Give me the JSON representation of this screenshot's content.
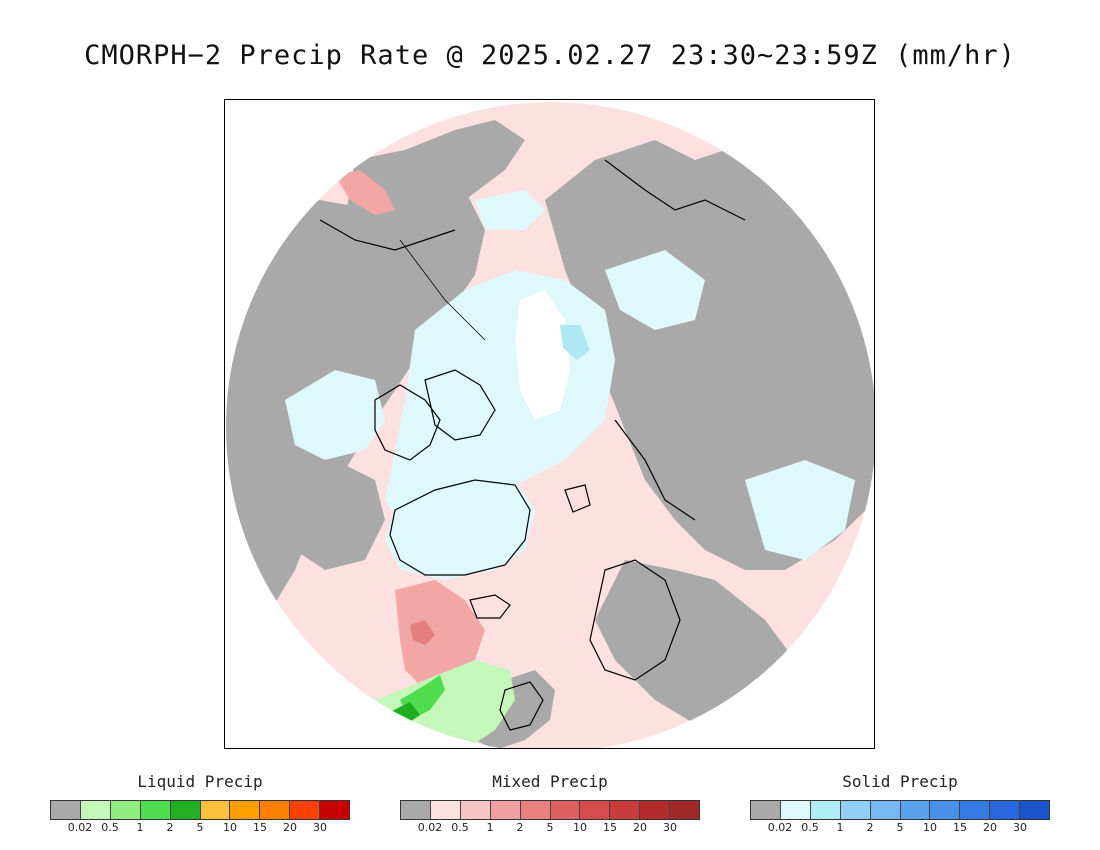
{
  "title": "CMORPH−2 Precip Rate @ 2025.02.27 23:30~23:59Z (mm/hr)",
  "map": {
    "projection": "north polar stereographic",
    "colors": {
      "no_precip": "#a9a9a9",
      "mixed_light": "#fde0e0",
      "mixed_mid": "#f2a6a6",
      "mixed_strong": "#e57f7f",
      "solid_light": "#dff8fb",
      "solid_white": "#ffffff",
      "solid_cyan": "#aee8f2",
      "liquid_light": "#c4f7b9",
      "liquid_mid": "#4fdc4f",
      "liquid_strong": "#1fae1f",
      "coast": "#000000"
    }
  },
  "legends": [
    {
      "id": "liquid",
      "title": "Liquid Precip",
      "colors": [
        "#a9a9a9",
        "#c4f7b9",
        "#90ee80",
        "#4fdc4f",
        "#22b022",
        "#ffc040",
        "#ffa000",
        "#ff8000",
        "#ff4000",
        "#c80000"
      ],
      "ticks": [
        "0.02",
        "0.5",
        "1",
        "2",
        "5",
        "10",
        "15",
        "20",
        "30"
      ]
    },
    {
      "id": "mixed",
      "title": "Mixed Precip",
      "colors": [
        "#a9a9a9",
        "#fde0e0",
        "#f8c4c4",
        "#f0a0a0",
        "#e88080",
        "#df6060",
        "#d44c4c",
        "#c83c3c",
        "#b22c2c",
        "#a02828"
      ],
      "ticks": [
        "0.02",
        "0.5",
        "1",
        "2",
        "5",
        "10",
        "15",
        "20",
        "30"
      ]
    },
    {
      "id": "solid",
      "title": "Solid Precip",
      "colors": [
        "#a9a9a9",
        "#dff8fb",
        "#b0ecf5",
        "#92cff5",
        "#78b8f2",
        "#5aa2ee",
        "#4890ea",
        "#357be4",
        "#2868dc",
        "#1a55cc"
      ],
      "ticks": [
        "0.02",
        "0.5",
        "1",
        "2",
        "5",
        "10",
        "15",
        "20",
        "30"
      ]
    }
  ]
}
